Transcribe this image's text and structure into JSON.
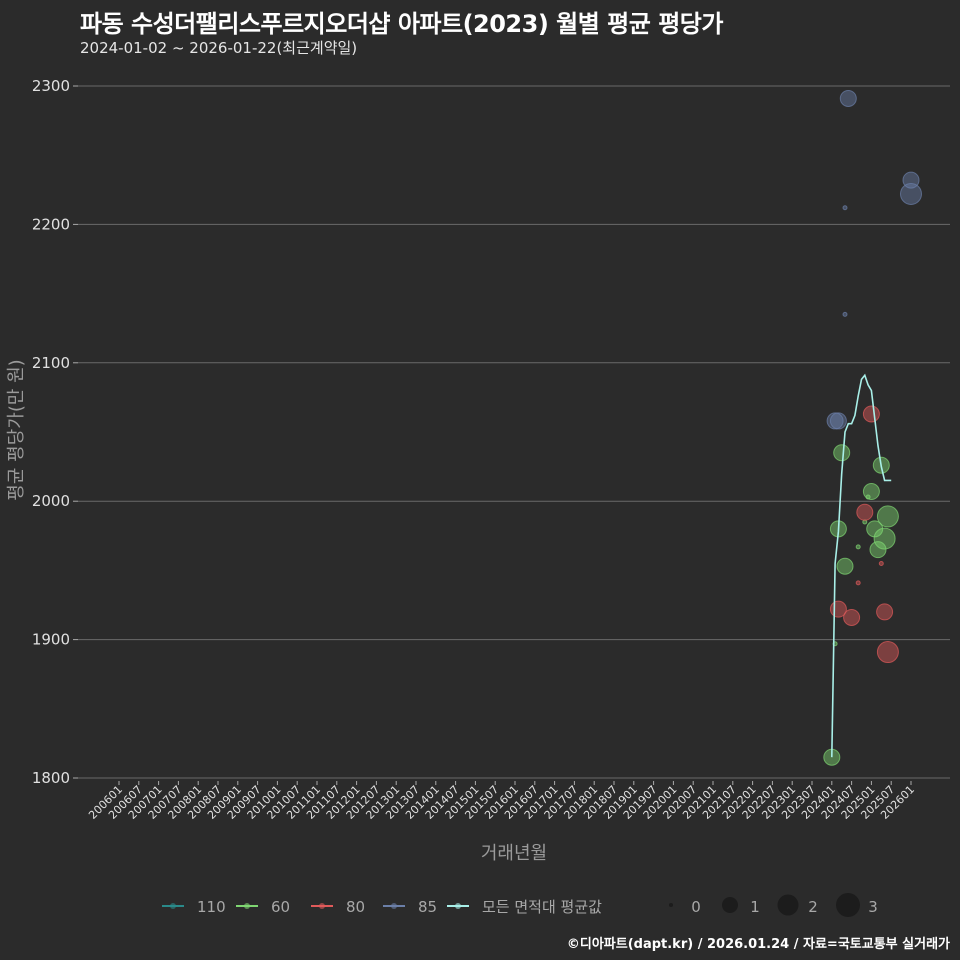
{
  "header": {
    "title": "파동 수성더팰리스푸르지오더샵 아파트(2023) 월별 평균 평당가",
    "subtitle": "2024-01-02 ~ 2026-01-22(최근계약일)"
  },
  "footer": {
    "credit": "©디아파트(dapt.kr) / 2026.01.24 / 자료=국토교통부 실거래가"
  },
  "colors": {
    "background": "#2b2b2b",
    "grid": "#6a6a6a",
    "s110": "#2a8a8a",
    "s60": "#7fd672",
    "s80": "#e05a5a",
    "s85": "#6b7fa8",
    "avg": "#a8efe8"
  },
  "chart_data": {
    "type": "scatter",
    "title": "파동 수성더팰리스푸르지오더샵 아파트(2023) 월별 평균 평당가",
    "subtitle": "2024-01-02 ~ 2026-01-22(최근계약일)",
    "xlabel": "거래년월",
    "ylabel": "평균 평당가(만 원)",
    "ylim": [
      1800,
      2300
    ],
    "yticks": [
      1800,
      1900,
      2000,
      2100,
      2200,
      2300
    ],
    "xticks": [
      "200601",
      "200607",
      "200701",
      "200707",
      "200801",
      "200807",
      "200901",
      "200907",
      "201001",
      "201007",
      "201101",
      "201107",
      "201201",
      "201207",
      "201301",
      "201307",
      "201401",
      "201407",
      "201501",
      "201507",
      "201601",
      "201607",
      "201701",
      "201707",
      "201801",
      "201807",
      "201901",
      "201907",
      "202001",
      "202007",
      "202101",
      "202107",
      "202201",
      "202207",
      "202301",
      "202307",
      "202401",
      "202407",
      "202501",
      "202507",
      "202601"
    ],
    "grid": true,
    "legend_position": "bottom",
    "legend": {
      "series": [
        "110",
        "60",
        "80",
        "85",
        "모든 면적대 평균값"
      ],
      "size": {
        "labels": [
          "0",
          "1",
          "2",
          "3"
        ],
        "radii": [
          2,
          8,
          10.5,
          12
        ]
      }
    },
    "series": [
      {
        "name": "60",
        "color": "#7fd672",
        "points": [
          {
            "x": "202401",
            "y": 1815,
            "size": 1
          },
          {
            "x": "202402",
            "y": 1897,
            "size": 0
          },
          {
            "x": "202403",
            "y": 1980,
            "size": 1
          },
          {
            "x": "202404",
            "y": 2035,
            "size": 1
          },
          {
            "x": "202405",
            "y": 1953,
            "size": 1
          },
          {
            "x": "202409",
            "y": 1967,
            "size": 0
          },
          {
            "x": "202411",
            "y": 1985,
            "size": 0
          },
          {
            "x": "202412",
            "y": 2003,
            "size": 0
          },
          {
            "x": "202501",
            "y": 2007,
            "size": 1
          },
          {
            "x": "202502",
            "y": 1980,
            "size": 1
          },
          {
            "x": "202503",
            "y": 1965,
            "size": 1
          },
          {
            "x": "202504",
            "y": 2026,
            "size": 1
          },
          {
            "x": "202505",
            "y": 1973,
            "size": 2
          },
          {
            "x": "202506",
            "y": 1989,
            "size": 2
          }
        ]
      },
      {
        "name": "80",
        "color": "#e05a5a",
        "points": [
          {
            "x": "202403",
            "y": 1922,
            "size": 1
          },
          {
            "x": "202407",
            "y": 1916,
            "size": 1
          },
          {
            "x": "202409",
            "y": 1941,
            "size": 0
          },
          {
            "x": "202411",
            "y": 1992,
            "size": 1
          },
          {
            "x": "202501",
            "y": 2063,
            "size": 1
          },
          {
            "x": "202504",
            "y": 1955,
            "size": 0
          },
          {
            "x": "202505",
            "y": 1920,
            "size": 1
          },
          {
            "x": "202506",
            "y": 1891,
            "size": 2
          }
        ]
      },
      {
        "name": "85",
        "color": "#6b7fa8",
        "points": [
          {
            "x": "202402",
            "y": 2058,
            "size": 1
          },
          {
            "x": "202403",
            "y": 2058,
            "size": 1
          },
          {
            "x": "202405",
            "y": 2135,
            "size": 0
          },
          {
            "x": "202405",
            "y": 2212,
            "size": 0
          },
          {
            "x": "202406",
            "y": 2291,
            "size": 1
          },
          {
            "x": "202601",
            "y": 2232,
            "size": 1
          },
          {
            "x": "202601",
            "y": 2222,
            "size": 2
          }
        ]
      },
      {
        "name": "110",
        "color": "#2a8a8a",
        "points": []
      }
    ],
    "average_line": {
      "name": "모든 면적대 평균값",
      "color": "#a8efe8",
      "x": [
        "202401",
        "202402",
        "202403",
        "202404",
        "202405",
        "202406",
        "202407",
        "202408",
        "202409",
        "202410",
        "202411",
        "202412",
        "202501",
        "202502",
        "202503",
        "202504",
        "202505",
        "202506",
        "202507"
      ],
      "y": [
        1815,
        1955,
        1978,
        2020,
        2050,
        2056,
        2056,
        2062,
        2076,
        2088,
        2091,
        2084,
        2080,
        2060,
        2040,
        2025,
        2015,
        2015,
        2015
      ]
    }
  }
}
